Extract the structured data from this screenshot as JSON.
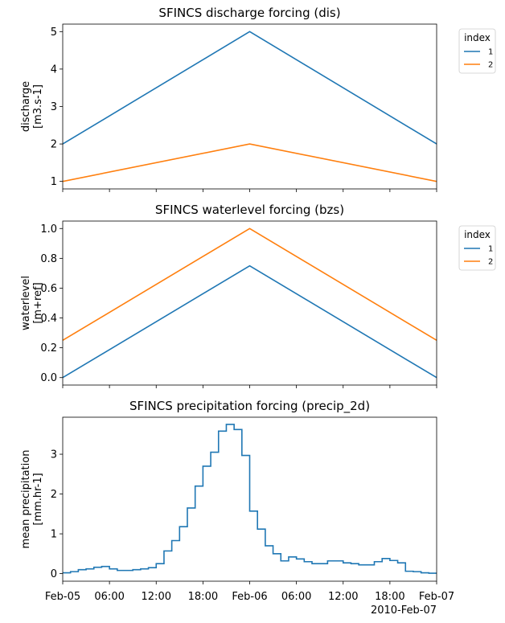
{
  "chart_data": [
    {
      "type": "line",
      "title": "SFINCS discharge forcing (dis)",
      "ylabel": [
        "discharge",
        "[m3.s-1]"
      ],
      "ylim": [
        0.8,
        5.2
      ],
      "yticks": [
        1,
        2,
        3,
        4,
        5
      ],
      "ytick_labels": [
        "1",
        "2",
        "3",
        "4",
        "5"
      ],
      "x": [
        0,
        24,
        48
      ],
      "series": [
        {
          "name": "1",
          "values": [
            2,
            5,
            2
          ],
          "color": "#1f77b4"
        },
        {
          "name": "2",
          "values": [
            1,
            2,
            1
          ],
          "color": "#ff7f0e"
        }
      ],
      "legend": {
        "title": "index",
        "placement": "outside-top-right"
      }
    },
    {
      "type": "line",
      "title": "SFINCS waterlevel forcing (bzs)",
      "ylabel": [
        "waterlevel",
        "[m+ref]"
      ],
      "ylim": [
        -0.05,
        1.05
      ],
      "yticks": [
        0,
        0.2,
        0.4,
        0.6,
        0.8,
        1.0
      ],
      "ytick_labels": [
        "0.0",
        "0.2",
        "0.4",
        "0.6",
        "0.8",
        "1.0"
      ],
      "x": [
        0,
        24,
        48
      ],
      "series": [
        {
          "name": "1",
          "values": [
            0,
            0.75,
            0
          ],
          "color": "#1f77b4"
        },
        {
          "name": "2",
          "values": [
            0.25,
            1.0,
            0.25
          ],
          "color": "#ff7f0e"
        }
      ],
      "legend": {
        "title": "index",
        "placement": "outside-top-right"
      }
    },
    {
      "type": "line",
      "title": "SFINCS precipitation forcing (precip_2d)",
      "ylabel": [
        "mean precipitation",
        "[mm.hr-1]"
      ],
      "ylim": [
        -0.19,
        3.93
      ],
      "yticks": [
        0,
        1,
        2,
        3
      ],
      "ytick_labels": [
        "0",
        "1",
        "2",
        "3"
      ],
      "step_hours": 1,
      "series": [
        {
          "name": "mean precipitation",
          "color": "#1f77b4",
          "values": [
            0.02,
            0.05,
            0.1,
            0.12,
            0.16,
            0.18,
            0.12,
            0.08,
            0.08,
            0.1,
            0.12,
            0.15,
            0.25,
            0.57,
            0.83,
            1.18,
            1.65,
            2.2,
            2.7,
            3.05,
            3.58,
            3.75,
            3.62,
            2.97,
            1.57,
            1.12,
            0.7,
            0.5,
            0.32,
            0.42,
            0.37,
            0.3,
            0.25,
            0.25,
            0.32,
            0.32,
            0.27,
            0.25,
            0.22,
            0.22,
            0.3,
            0.38,
            0.33,
            0.27,
            0.06,
            0.05,
            0.02,
            0.01
          ]
        }
      ]
    }
  ],
  "x_axis": {
    "range_hours": [
      0,
      48
    ],
    "ticks_hours": [
      0,
      6,
      12,
      18,
      24,
      30,
      36,
      42,
      48
    ],
    "tick_labels": [
      "Feb-05",
      "06:00",
      "12:00",
      "18:00",
      "Feb-06",
      "06:00",
      "12:00",
      "18:00",
      "Feb-07"
    ],
    "offset_label": "2010-Feb-07"
  }
}
